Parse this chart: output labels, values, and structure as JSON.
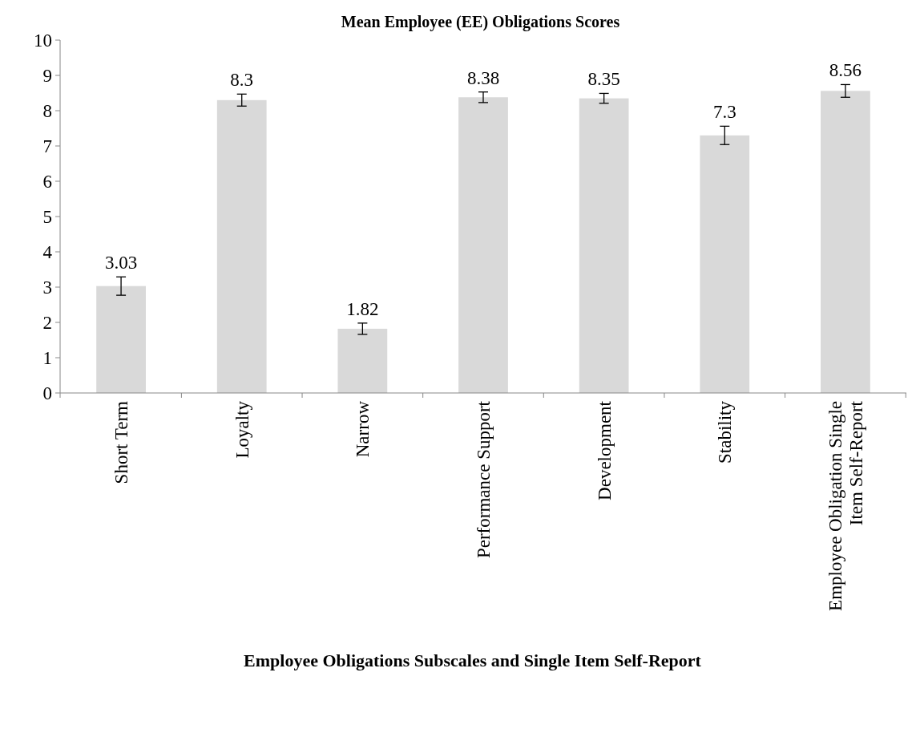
{
  "chart_data": {
    "type": "bar",
    "title": "Mean Employee (EE) Obligations Scores",
    "xlabel": "Employee Obligations Subscales and Single Item Self-Report",
    "categories": [
      "Short Term",
      "Loyalty",
      "Narrow",
      "Performance Support",
      "Development",
      "Stability",
      "Employee Obligation Single Item Self-Report"
    ],
    "values": [
      3.03,
      8.3,
      1.82,
      8.38,
      8.35,
      7.3,
      8.56
    ],
    "errors": [
      0.26,
      0.17,
      0.16,
      0.15,
      0.14,
      0.26,
      0.18
    ],
    "color": "#d9d9d9",
    "ylim": [
      0,
      10
    ],
    "yticks": [
      0,
      1,
      2,
      3,
      4,
      5,
      6,
      7,
      8,
      9,
      10
    ],
    "grid": false,
    "data_labels": true
  }
}
